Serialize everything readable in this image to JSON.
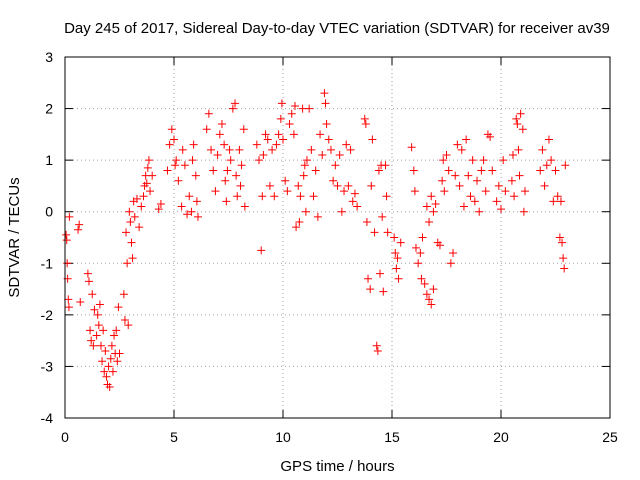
{
  "chart_data": {
    "type": "scatter",
    "title": "Day 245 of 2017, Sidereal Day-to-day VTEC variation (SDTVAR) for receiver av39",
    "xlabel": "GPS time / hours",
    "ylabel": "SDTVAR / TECUs",
    "xlim": [
      0,
      25
    ],
    "ylim": [
      -4,
      3
    ],
    "xticks": [
      0,
      5,
      10,
      15,
      20,
      25
    ],
    "yticks": [
      -4,
      -3,
      -2,
      -1,
      0,
      1,
      2,
      3
    ],
    "grid": true,
    "marker": "+",
    "color": "#ff0000",
    "series": [
      {
        "name": "SDTVAR",
        "points": [
          [
            0.05,
            -0.45
          ],
          [
            0.08,
            -0.55
          ],
          [
            0.1,
            -1.0
          ],
          [
            0.12,
            -1.3
          ],
          [
            0.15,
            -1.7
          ],
          [
            0.18,
            -1.85
          ],
          [
            0.2,
            -0.1
          ],
          [
            0.6,
            -0.35
          ],
          [
            0.65,
            -0.25
          ],
          [
            0.7,
            -1.75
          ],
          [
            1.05,
            -1.2
          ],
          [
            1.1,
            -1.35
          ],
          [
            1.15,
            -2.3
          ],
          [
            1.2,
            -2.5
          ],
          [
            1.25,
            -1.6
          ],
          [
            1.3,
            -2.6
          ],
          [
            1.35,
            -1.9
          ],
          [
            1.45,
            -2.4
          ],
          [
            1.5,
            -2.0
          ],
          [
            1.55,
            -2.2
          ],
          [
            1.6,
            -1.8
          ],
          [
            1.65,
            -2.6
          ],
          [
            1.7,
            -2.9
          ],
          [
            1.75,
            -2.3
          ],
          [
            1.8,
            -3.1
          ],
          [
            1.85,
            -2.7
          ],
          [
            1.9,
            -3.2
          ],
          [
            1.95,
            -3.35
          ],
          [
            2.0,
            -3.0
          ],
          [
            2.05,
            -3.4
          ],
          [
            2.1,
            -2.85
          ],
          [
            2.15,
            -2.6
          ],
          [
            2.2,
            -3.1
          ],
          [
            2.25,
            -2.4
          ],
          [
            2.3,
            -2.75
          ],
          [
            2.35,
            -2.3
          ],
          [
            2.4,
            -2.9
          ],
          [
            2.45,
            -1.85
          ],
          [
            2.5,
            -2.75
          ],
          [
            2.7,
            -1.6
          ],
          [
            2.75,
            -2.1
          ],
          [
            2.8,
            -0.4
          ],
          [
            2.85,
            -1.0
          ],
          [
            2.9,
            -2.2
          ],
          [
            2.95,
            0.0
          ],
          [
            3.0,
            -0.2
          ],
          [
            3.05,
            -0.6
          ],
          [
            3.1,
            -0.9
          ],
          [
            3.15,
            0.2
          ],
          [
            3.2,
            -0.1
          ],
          [
            3.3,
            0.25
          ],
          [
            3.4,
            -0.3
          ],
          [
            3.5,
            0.1
          ],
          [
            3.6,
            0.3
          ],
          [
            3.65,
            0.5
          ],
          [
            3.7,
            0.7
          ],
          [
            3.75,
            0.55
          ],
          [
            3.8,
            0.85
          ],
          [
            3.85,
            1.0
          ],
          [
            3.9,
            0.4
          ],
          [
            4.0,
            0.7
          ],
          [
            4.3,
            0.05
          ],
          [
            4.4,
            0.15
          ],
          [
            4.7,
            0.8
          ],
          [
            4.8,
            1.3
          ],
          [
            4.9,
            1.6
          ],
          [
            5.0,
            1.4
          ],
          [
            5.05,
            0.9
          ],
          [
            5.1,
            1.0
          ],
          [
            5.2,
            0.6
          ],
          [
            5.35,
            0.1
          ],
          [
            5.4,
            1.2
          ],
          [
            5.5,
            0.9
          ],
          [
            5.6,
            -0.05
          ],
          [
            5.7,
            0.3
          ],
          [
            5.8,
            0.0
          ],
          [
            5.85,
            1.0
          ],
          [
            5.9,
            1.3
          ],
          [
            6.0,
            0.7
          ],
          [
            6.05,
            0.2
          ],
          [
            6.1,
            -0.1
          ],
          [
            6.5,
            1.6
          ],
          [
            6.6,
            1.9
          ],
          [
            6.7,
            1.2
          ],
          [
            6.8,
            0.8
          ],
          [
            6.9,
            0.4
          ],
          [
            7.0,
            1.1
          ],
          [
            7.1,
            1.5
          ],
          [
            7.2,
            1.7
          ],
          [
            7.3,
            1.3
          ],
          [
            7.35,
            0.6
          ],
          [
            7.4,
            0.2
          ],
          [
            7.45,
            0.8
          ],
          [
            7.55,
            1.2
          ],
          [
            7.6,
            1.0
          ],
          [
            7.7,
            2.0
          ],
          [
            7.8,
            2.1
          ],
          [
            7.85,
            0.7
          ],
          [
            7.9,
            0.3
          ],
          [
            8.0,
            1.2
          ],
          [
            8.05,
            0.5
          ],
          [
            8.1,
            0.9
          ],
          [
            8.2,
            1.6
          ],
          [
            8.25,
            0.1
          ],
          [
            8.8,
            1.3
          ],
          [
            8.9,
            1.0
          ],
          [
            9.0,
            -0.75
          ],
          [
            9.05,
            0.3
          ],
          [
            9.1,
            1.1
          ],
          [
            9.2,
            1.5
          ],
          [
            9.3,
            1.4
          ],
          [
            9.4,
            0.5
          ],
          [
            9.5,
            1.2
          ],
          [
            9.6,
            0.3
          ],
          [
            9.7,
            1.3
          ],
          [
            9.8,
            1.5
          ],
          [
            9.9,
            1.8
          ],
          [
            9.95,
            2.1
          ],
          [
            10.0,
            1.4
          ],
          [
            10.1,
            0.6
          ],
          [
            10.2,
            0.4
          ],
          [
            10.3,
            1.7
          ],
          [
            10.4,
            1.9
          ],
          [
            10.5,
            1.5
          ],
          [
            10.55,
            2.05
          ],
          [
            10.6,
            -0.3
          ],
          [
            10.7,
            0.5
          ],
          [
            10.75,
            -0.2
          ],
          [
            10.8,
            0.3
          ],
          [
            10.9,
            2.0
          ],
          [
            10.95,
            0.7
          ],
          [
            11.0,
            0.9
          ],
          [
            11.05,
            0.0
          ],
          [
            11.1,
            1.0
          ],
          [
            11.2,
            2.0
          ],
          [
            11.3,
            1.2
          ],
          [
            11.4,
            0.3
          ],
          [
            11.5,
            0.8
          ],
          [
            11.6,
            -0.1
          ],
          [
            11.7,
            1.5
          ],
          [
            11.8,
            1.1
          ],
          [
            11.9,
            2.3
          ],
          [
            11.95,
            2.1
          ],
          [
            12.0,
            1.7
          ],
          [
            12.1,
            1.4
          ],
          [
            12.2,
            1.2
          ],
          [
            12.3,
            0.6
          ],
          [
            12.4,
            0.9
          ],
          [
            12.5,
            0.5
          ],
          [
            12.6,
            1.1
          ],
          [
            12.7,
            0.0
          ],
          [
            12.8,
            0.4
          ],
          [
            12.9,
            1.3
          ],
          [
            13.0,
            0.5
          ],
          [
            13.1,
            1.2
          ],
          [
            13.2,
            0.2
          ],
          [
            13.3,
            0.35
          ],
          [
            13.4,
            0.1
          ],
          [
            13.75,
            1.8
          ],
          [
            13.8,
            1.7
          ],
          [
            13.85,
            -0.2
          ],
          [
            13.9,
            -1.3
          ],
          [
            14.0,
            -1.5
          ],
          [
            14.05,
            0.5
          ],
          [
            14.1,
            1.4
          ],
          [
            14.2,
            -0.4
          ],
          [
            14.3,
            -2.6
          ],
          [
            14.35,
            -2.7
          ],
          [
            14.4,
            0.8
          ],
          [
            14.45,
            -1.2
          ],
          [
            14.5,
            0.9
          ],
          [
            14.55,
            -0.1
          ],
          [
            14.6,
            -1.55
          ],
          [
            14.7,
            0.9
          ],
          [
            14.75,
            0.3
          ],
          [
            14.8,
            -0.4
          ],
          [
            15.1,
            -0.5
          ],
          [
            15.15,
            -0.8
          ],
          [
            15.2,
            -1.1
          ],
          [
            15.25,
            -0.9
          ],
          [
            15.3,
            -1.3
          ],
          [
            15.4,
            -0.6
          ],
          [
            15.9,
            1.25
          ],
          [
            16.0,
            0.8
          ],
          [
            16.05,
            0.4
          ],
          [
            16.1,
            -0.7
          ],
          [
            16.2,
            -1.0
          ],
          [
            16.3,
            -0.8
          ],
          [
            16.35,
            -1.3
          ],
          [
            16.4,
            -0.5
          ],
          [
            16.5,
            -1.4
          ],
          [
            16.6,
            -1.6
          ],
          [
            16.7,
            -1.7
          ],
          [
            16.8,
            -1.8
          ],
          [
            16.9,
            -1.5
          ],
          [
            16.6,
            0.1
          ],
          [
            16.7,
            -0.2
          ],
          [
            16.8,
            0.3
          ],
          [
            16.9,
            0.0
          ],
          [
            17.0,
            0.15
          ],
          [
            17.1,
            -0.6
          ],
          [
            17.2,
            -0.65
          ],
          [
            17.3,
            0.6
          ],
          [
            17.35,
            1.0
          ],
          [
            17.4,
            0.4
          ],
          [
            17.5,
            1.1
          ],
          [
            17.6,
            0.8
          ],
          [
            17.7,
            -1.0
          ],
          [
            17.8,
            -0.8
          ],
          [
            17.9,
            0.7
          ],
          [
            18.0,
            1.3
          ],
          [
            18.1,
            0.5
          ],
          [
            18.2,
            1.2
          ],
          [
            18.3,
            0.1
          ],
          [
            18.4,
            1.4
          ],
          [
            18.5,
            0.7
          ],
          [
            18.6,
            0.3
          ],
          [
            18.7,
            1.0
          ],
          [
            18.8,
            0.2
          ],
          [
            18.9,
            0.6
          ],
          [
            19.0,
            0.0
          ],
          [
            19.1,
            0.8
          ],
          [
            19.2,
            1.0
          ],
          [
            19.3,
            0.4
          ],
          [
            19.4,
            1.5
          ],
          [
            19.5,
            1.45
          ],
          [
            19.6,
            0.8
          ],
          [
            19.8,
            0.2
          ],
          [
            19.9,
            0.5
          ],
          [
            20.0,
            0.05
          ],
          [
            20.1,
            1.0
          ],
          [
            20.2,
            0.4
          ],
          [
            20.5,
            0.6
          ],
          [
            20.55,
            1.1
          ],
          [
            20.6,
            0.3
          ],
          [
            20.7,
            1.8
          ],
          [
            20.75,
            1.7
          ],
          [
            20.8,
            1.2
          ],
          [
            20.85,
            0.7
          ],
          [
            20.9,
            1.9
          ],
          [
            21.0,
            1.6
          ],
          [
            21.05,
            0.0
          ],
          [
            21.1,
            0.4
          ],
          [
            21.8,
            0.8
          ],
          [
            21.9,
            1.2
          ],
          [
            22.0,
            0.5
          ],
          [
            22.1,
            0.9
          ],
          [
            22.2,
            1.4
          ],
          [
            22.3,
            1.0
          ],
          [
            22.4,
            0.2
          ],
          [
            22.5,
            0.8
          ],
          [
            22.6,
            0.3
          ],
          [
            22.7,
            -0.5
          ],
          [
            22.75,
            0.2
          ],
          [
            22.8,
            -0.6
          ],
          [
            22.85,
            -0.9
          ],
          [
            22.9,
            -1.1
          ],
          [
            22.95,
            0.9
          ]
        ]
      }
    ]
  }
}
